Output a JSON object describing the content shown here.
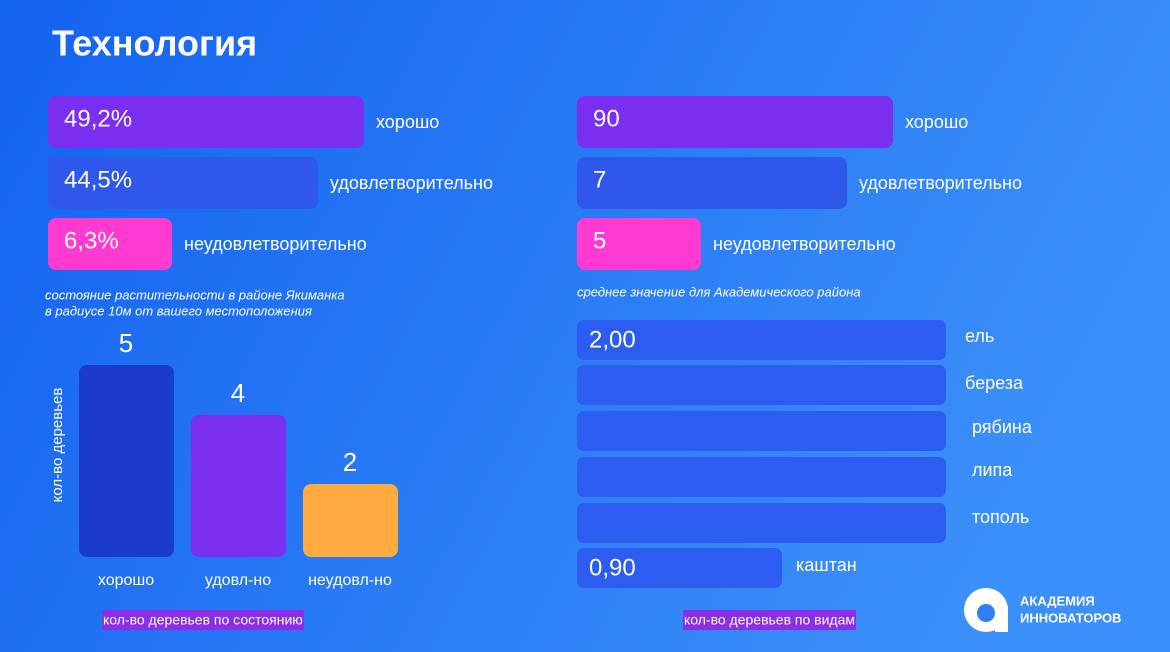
{
  "header": {
    "title": "Технология"
  },
  "left_panel": {
    "rows": [
      {
        "value": "49,2%",
        "label": "хорошо"
      },
      {
        "value": "44,5%",
        "label": "удовлетворительно"
      },
      {
        "value": "6,3%",
        "label": "неудовлетворительно"
      }
    ],
    "caption": [
      "состояние растительности в районе Якиманка",
      "в радиусе 10м от вашего местоположения"
    ]
  },
  "right_panel": {
    "rows": [
      {
        "value": "90",
        "label": "хорошо"
      },
      {
        "value": "7",
        "label": "удовлетворительно"
      },
      {
        "value": "5",
        "label": "неудовлетворительно"
      }
    ],
    "caption": [
      "среднее значение для Академического района"
    ]
  },
  "condition_chart": {
    "axis_label": "кол-во деревьев",
    "bars": [
      {
        "value": "5",
        "label": "хорошо"
      },
      {
        "value": "4",
        "label": "удовл-но"
      },
      {
        "value": "2",
        "label": "неудовл-но"
      }
    ],
    "footer": "кол-во деревьев по состоянию"
  },
  "species_chart": {
    "rows": [
      {
        "value": "2,00",
        "label": "ель"
      },
      {
        "value": null,
        "label": "береза"
      },
      {
        "value": null,
        "label": "рябина"
      },
      {
        "value": null,
        "label": "липа"
      },
      {
        "value": null,
        "label": "тополь"
      },
      {
        "value": "0,90",
        "label": "каштан"
      }
    ],
    "footer": "кол-во деревьев по видам"
  },
  "logo": {
    "lines": [
      "АКАДЕМИЯ",
      "ИННОВАТОРОВ"
    ]
  }
}
